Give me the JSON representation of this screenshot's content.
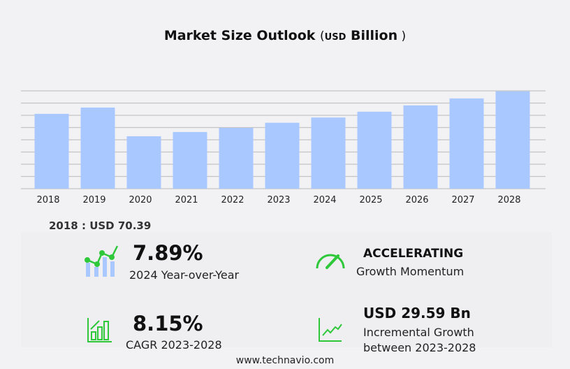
{
  "chart_data": {
    "type": "bar",
    "title": "Market Size Outlook",
    "unit_prefix": "USD",
    "unit": "Billion",
    "categories": [
      "2018",
      "2019",
      "2020",
      "2021",
      "2022",
      "2023",
      "2024",
      "2025",
      "2026",
      "2027",
      "2028"
    ],
    "values": [
      70.39,
      76.3,
      49.3,
      53.3,
      57.2,
      62.0,
      66.9,
      72.4,
      78.3,
      84.9,
      91.6
    ],
    "ylim": [
      0,
      92
    ],
    "grid": true,
    "bar_color": "#a8c8ff"
  },
  "base_label": "2018 : USD  70.39",
  "stats": {
    "yoy": {
      "value": "7.89%",
      "label": "2024 Year-over-Year"
    },
    "momentum": {
      "value": "ACCELERATING",
      "label": "Growth Momentum"
    },
    "cagr": {
      "value": "8.15%",
      "label": "CAGR 2023-2028"
    },
    "incremental": {
      "value": "USD 29.59 Bn",
      "label1": "Incremental Growth",
      "label2": "between 2023-2028"
    }
  },
  "accent_color": "#2ec83a",
  "footer": "www.technavio.com"
}
